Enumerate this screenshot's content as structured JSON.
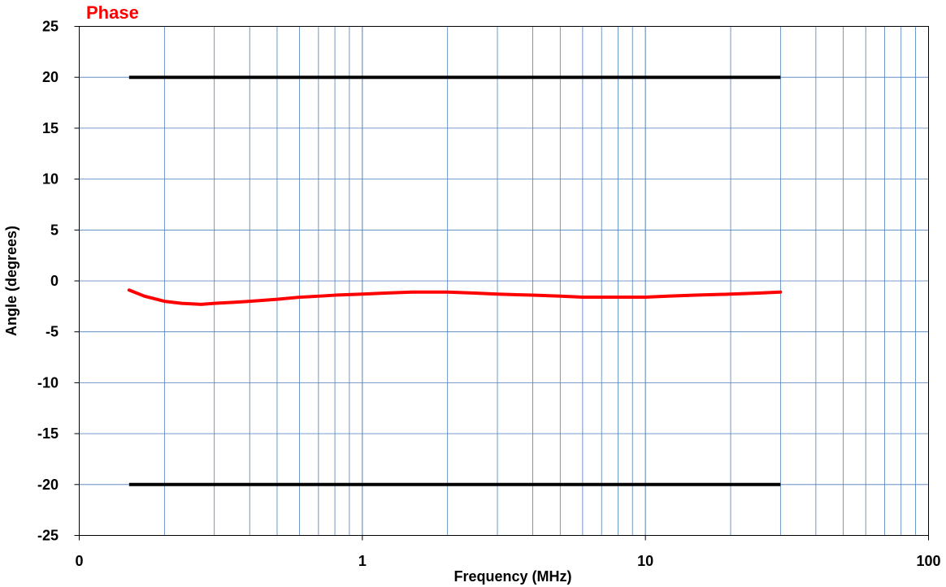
{
  "chart_data": {
    "type": "line",
    "title": "Phase",
    "xlabel": "Frequency (MHz)",
    "ylabel": "Angle (degrees)",
    "x_scale": "log",
    "xlim": [
      0.1,
      100
    ],
    "ylim": [
      -25,
      25
    ],
    "x_tick_labels": [
      "0",
      "1",
      "10",
      "100"
    ],
    "y_ticks": [
      25,
      20,
      15,
      10,
      5,
      0,
      -5,
      -10,
      -15,
      -20,
      -25
    ],
    "grid": true,
    "colors": {
      "title": "#FF0000",
      "phase": "#FF0000",
      "limits": "#000000",
      "grid": "#4A7EBB"
    },
    "series": [
      {
        "x": [
          0.15,
          0.17,
          0.2,
          0.23,
          0.27,
          0.3,
          0.35,
          0.4,
          0.5,
          0.6,
          0.7,
          0.8,
          1.0,
          1.2,
          1.5,
          2,
          2.5,
          3,
          4,
          5,
          6,
          7,
          8,
          10,
          12,
          15,
          20,
          25,
          30
        ],
        "y": [
          -0.9,
          -1.5,
          -2.0,
          -2.2,
          -2.3,
          -2.2,
          -2.1,
          -2.0,
          -1.8,
          -1.6,
          -1.5,
          -1.4,
          -1.3,
          -1.2,
          -1.1,
          -1.1,
          -1.2,
          -1.3,
          -1.4,
          -1.5,
          -1.6,
          -1.6,
          -1.6,
          -1.6,
          -1.5,
          -1.4,
          -1.3,
          -1.2,
          -1.1
        ]
      },
      {
        "x": [
          0.15,
          30
        ],
        "y": [
          20,
          20
        ]
      },
      {
        "x": [
          0.15,
          30
        ],
        "y": [
          -20,
          -20
        ]
      }
    ]
  }
}
